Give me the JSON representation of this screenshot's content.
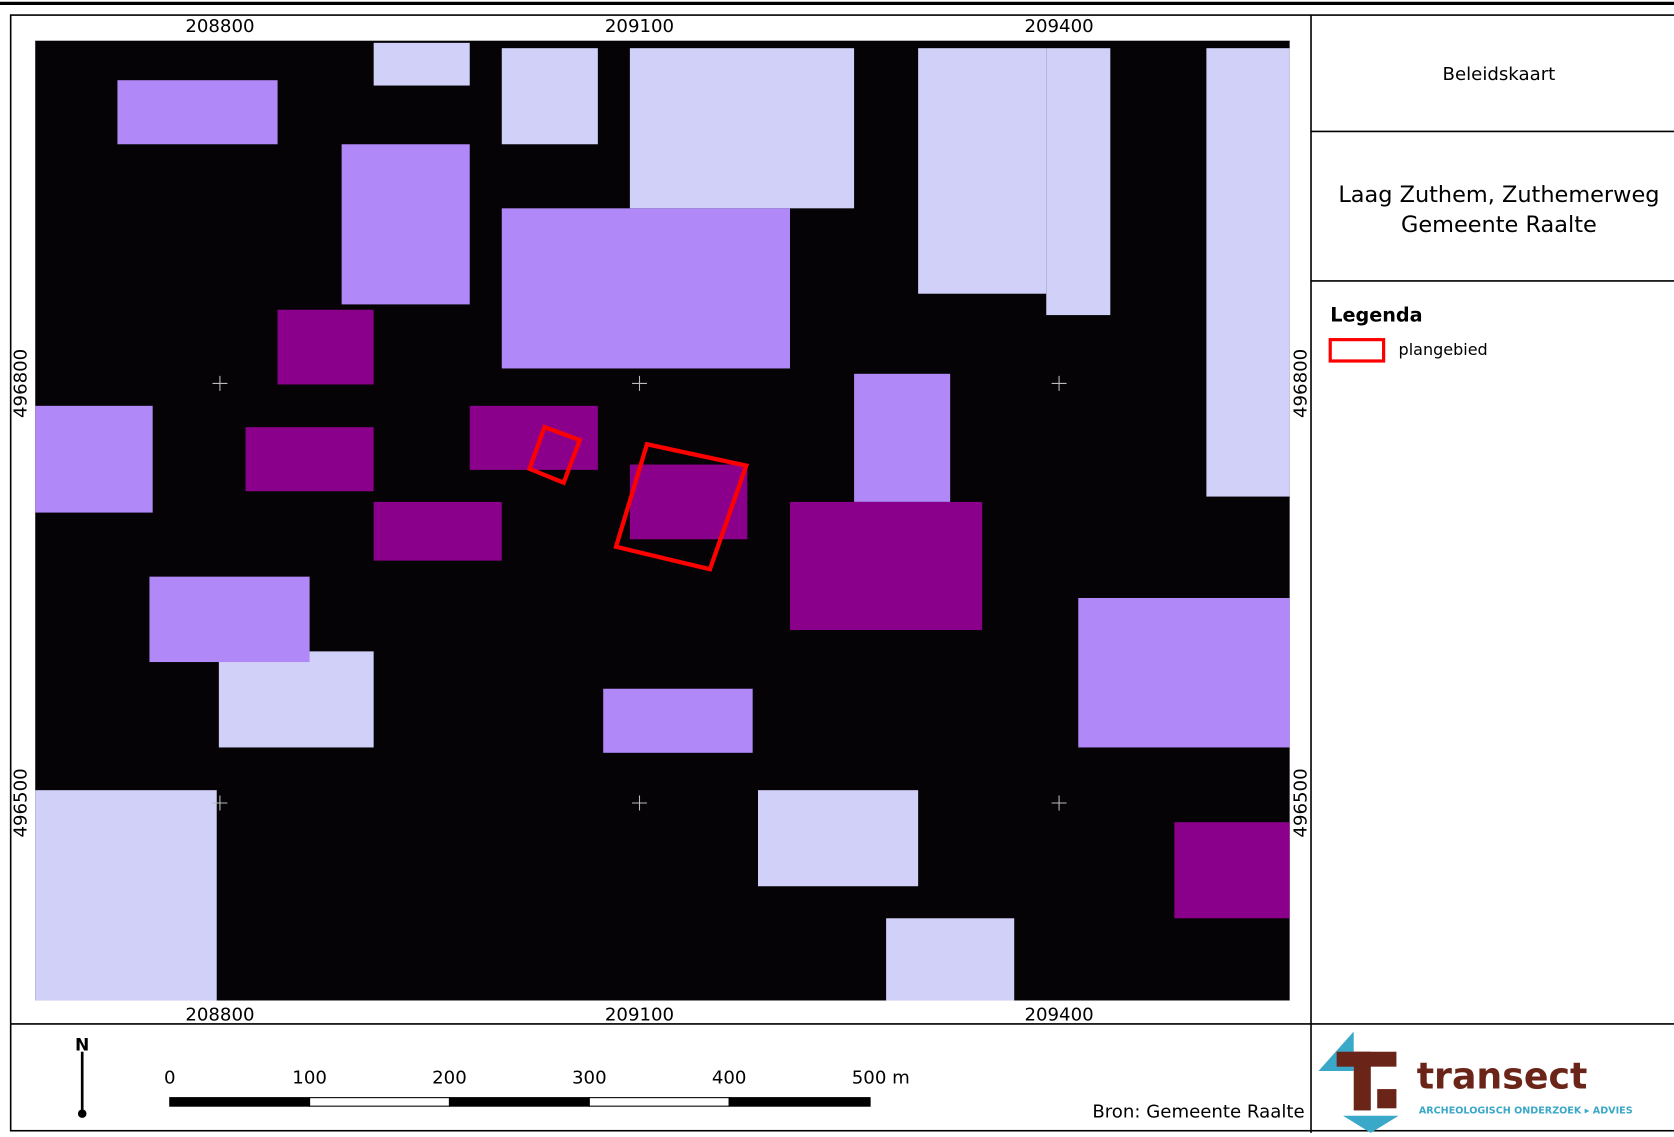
{
  "header": {
    "title": "Beleidskaart",
    "subtitle": [
      "Laag Zuthem, Zuthemerweg",
      "Gemeente Raalte"
    ]
  },
  "legend": {
    "title": "Legenda",
    "items": [
      "plangebied"
    ]
  },
  "map": {
    "x_labels": [
      208800,
      209100,
      209400
    ],
    "y_labels": [
      496800,
      496500
    ]
  },
  "scale_bar": {
    "labels": [
      "0",
      "100",
      "200",
      "300",
      "400",
      "500 m"
    ]
  },
  "north": "N",
  "source": "Bron: Gemeente Raalte",
  "logo": {
    "name": "transect",
    "tagline": "ARCHEOLOGISCH ONDERZOEK ▸ ADVIES"
  }
}
